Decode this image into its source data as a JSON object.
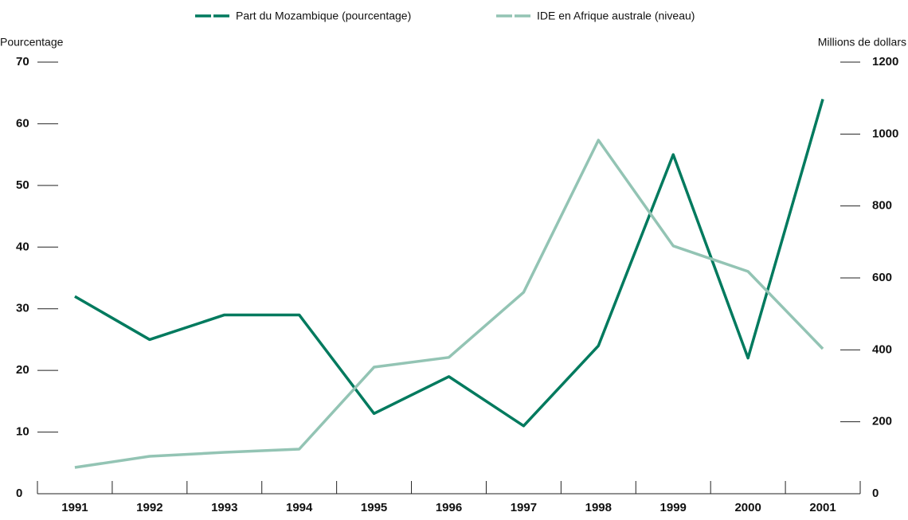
{
  "chart_data": {
    "type": "line",
    "y_label": "Pourcentage",
    "y2_label": "Millions de dollars",
    "categories": [
      "1991",
      "1992",
      "1993",
      "1994",
      "1995",
      "1996",
      "1997",
      "1998",
      "1999",
      "2000",
      "2001"
    ],
    "series": [
      {
        "name": "Part du Mozambique (pourcentage)",
        "color": "#007a5e",
        "values": [
          32,
          25,
          29,
          29,
          13,
          19,
          11,
          24,
          55,
          22,
          64
        ]
      },
      {
        "name": "IDE en Afrique australe (niveau)",
        "color": "#93c4b4",
        "axis": "y2",
        "values": [
          73,
          104,
          115,
          124,
          352,
          379,
          560,
          983,
          689,
          618,
          403
        ]
      }
    ],
    "ylim": [
      0,
      70
    ],
    "yticks": [
      0,
      10,
      20,
      30,
      40,
      50,
      60,
      70
    ],
    "y2lim": [
      0,
      1200
    ],
    "y2ticks": [
      0,
      200,
      400,
      600,
      800,
      1000,
      1200
    ],
    "legend": "top"
  }
}
